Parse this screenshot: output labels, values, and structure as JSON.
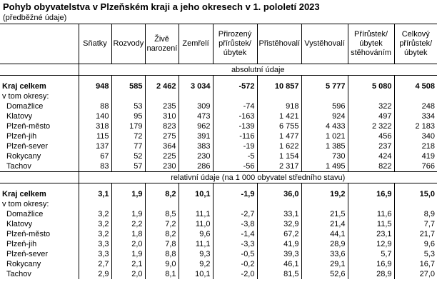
{
  "title": "Pohyb obyvatelstva v Plzeňském kraji a jeho okresech v 1. pololetí 2023",
  "subtitle": "(předběžné údaje)",
  "headers": [
    "Sňatky",
    "Rozvody",
    "Živě narození",
    "Zemřelí",
    "Přirozený přírůstek/ úbytek",
    "Přistěhovalí",
    "Vystěhovalí",
    "Přírůstek/ úbytek stěhováním",
    "Celkový přírůstek/ úbytek"
  ],
  "sections": [
    {
      "label": "absolutní údaje",
      "total": {
        "label": "Kraj celkem",
        "values": [
          "948",
          "585",
          "2 462",
          "3 034",
          "-572",
          "10 857",
          "5 777",
          "5 080",
          "4 508"
        ]
      },
      "subhead": "v tom okresy:",
      "rows": [
        {
          "label": "Domažlice",
          "values": [
            "88",
            "53",
            "235",
            "309",
            "-74",
            "918",
            "596",
            "322",
            "248"
          ]
        },
        {
          "label": "Klatovy",
          "values": [
            "140",
            "95",
            "310",
            "473",
            "-163",
            "1 421",
            "924",
            "497",
            "334"
          ]
        },
        {
          "label": "Plzeň-město",
          "values": [
            "318",
            "179",
            "823",
            "962",
            "-139",
            "6 755",
            "4 433",
            "2 322",
            "2 183"
          ]
        },
        {
          "label": "Plzeň-jih",
          "values": [
            "115",
            "72",
            "275",
            "391",
            "-116",
            "1 477",
            "1 021",
            "456",
            "340"
          ]
        },
        {
          "label": "Plzeň-sever",
          "values": [
            "137",
            "77",
            "364",
            "383",
            "-19",
            "1 622",
            "1 385",
            "237",
            "218"
          ]
        },
        {
          "label": "Rokycany",
          "values": [
            "67",
            "52",
            "225",
            "230",
            "-5",
            "1 154",
            "730",
            "424",
            "419"
          ]
        },
        {
          "label": "Tachov",
          "values": [
            "83",
            "57",
            "230",
            "286",
            "-56",
            "2 317",
            "1 495",
            "822",
            "766"
          ]
        }
      ]
    },
    {
      "label": "relativní údaje (na 1 000 obyvatel středního stavu)",
      "total": {
        "label": "Kraj celkem",
        "values": [
          "3,1",
          "1,9",
          "8,2",
          "10,1",
          "-1,9",
          "36,0",
          "19,2",
          "16,9",
          "15,0"
        ]
      },
      "subhead": "v tom okresy:",
      "rows": [
        {
          "label": "Domažlice",
          "values": [
            "3,2",
            "1,9",
            "8,5",
            "11,1",
            "-2,7",
            "33,1",
            "21,5",
            "11,6",
            "8,9"
          ]
        },
        {
          "label": "Klatovy",
          "values": [
            "3,2",
            "2,2",
            "7,2",
            "11,0",
            "-3,8",
            "32,9",
            "21,4",
            "11,5",
            "7,7"
          ]
        },
        {
          "label": "Plzeň-město",
          "values": [
            "3,2",
            "1,8",
            "8,2",
            "9,6",
            "-1,4",
            "67,2",
            "44,1",
            "23,1",
            "21,7"
          ]
        },
        {
          "label": "Plzeň-jih",
          "values": [
            "3,3",
            "2,0",
            "7,8",
            "11,1",
            "-3,3",
            "41,9",
            "28,9",
            "12,9",
            "9,6"
          ]
        },
        {
          "label": "Plzeň-sever",
          "values": [
            "3,3",
            "1,9",
            "8,8",
            "9,3",
            "-0,5",
            "39,3",
            "33,6",
            "5,7",
            "5,3"
          ]
        },
        {
          "label": "Rokycany",
          "values": [
            "2,7",
            "2,1",
            "9,0",
            "9,2",
            "-0,2",
            "46,1",
            "29,1",
            "16,9",
            "16,7"
          ]
        },
        {
          "label": "Tachov",
          "values": [
            "2,9",
            "2,0",
            "8,1",
            "10,1",
            "-2,0",
            "81,5",
            "52,6",
            "28,9",
            "27,0"
          ]
        }
      ]
    }
  ]
}
